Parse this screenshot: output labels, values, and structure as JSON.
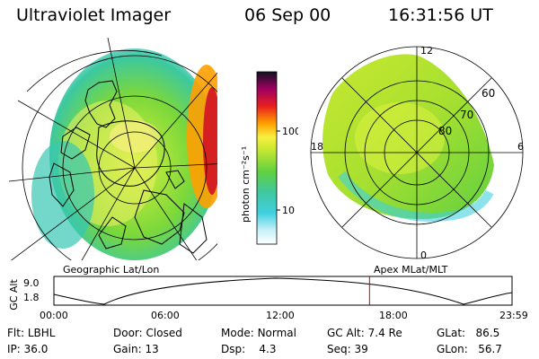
{
  "header": {
    "instrument": "Ultraviolet Imager",
    "date": "06 Sep 00",
    "time": "16:31:56 UT"
  },
  "colorbar": {
    "unit_label": "photon cm⁻²s⁻¹",
    "ticks": [
      "100",
      "10"
    ]
  },
  "left_panel": {
    "caption": "Geographic Lat/Lon"
  },
  "right_panel": {
    "caption": "Apex MLat/MLT",
    "mlt_labels": {
      "top": "12",
      "left": "18",
      "right": "6",
      "bottom": "0"
    },
    "lat_labels": [
      "60",
      "70",
      "80"
    ]
  },
  "altitude_plot": {
    "axis_label": "GC Alt",
    "yticks": [
      "9.0",
      "1.8"
    ],
    "xticks": [
      "00:00",
      "06:00",
      "12:00",
      "18:00",
      "23:59"
    ],
    "current_time_fraction": 0.6889,
    "marker_color": "#cc0000"
  },
  "status": {
    "row1": [
      {
        "label": "Flt:",
        "value": "LBHL"
      },
      {
        "label": "Door:",
        "value": "Closed"
      },
      {
        "label": "Mode:",
        "value": "Normal"
      },
      {
        "label": "GC Alt:",
        "value": "7.4 Re"
      },
      {
        "label": "GLat:",
        "value": "86.5"
      }
    ],
    "row2": [
      {
        "label": "IP:",
        "value": "36.0"
      },
      {
        "label": "Gain:",
        "value": "13"
      },
      {
        "label": "Dsp:",
        "value": "4.3"
      },
      {
        "label": "Seq:",
        "value": "39"
      },
      {
        "label": "GLon:",
        "value": "56.7"
      }
    ]
  }
}
